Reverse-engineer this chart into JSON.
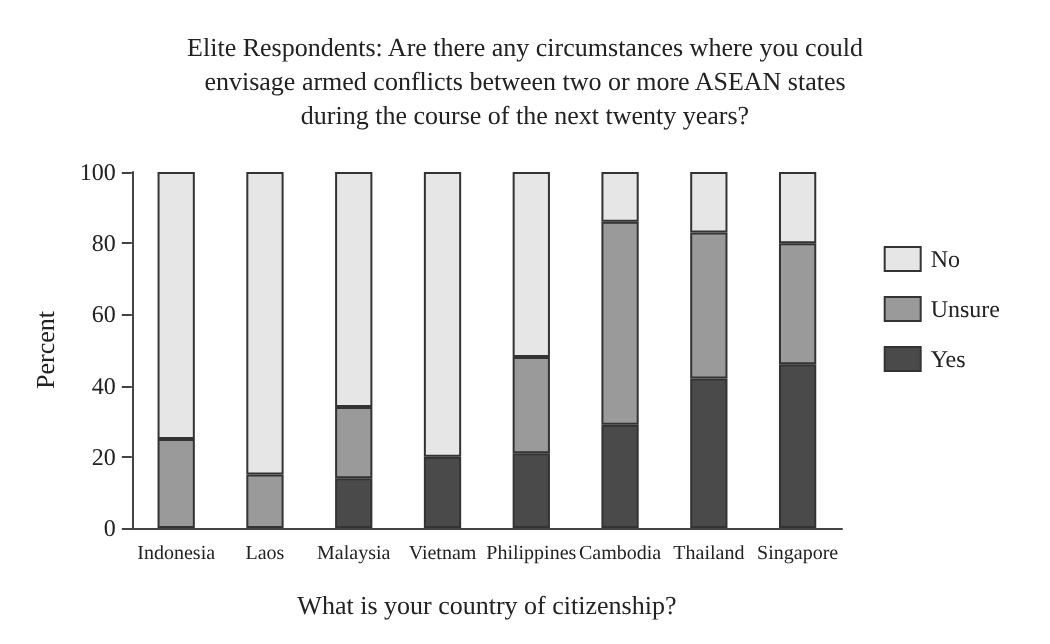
{
  "chart_data": {
    "type": "bar",
    "title": "Elite Respondents: Are there any circumstances where you could\nenvisage armed conflicts between two or more ASEAN states\nduring the course of the next twenty years?",
    "xlabel": "What is your country of citizenship?",
    "ylabel": "Percent",
    "categories": [
      "Indonesia",
      "Laos",
      "Malaysia",
      "Vietnam",
      "Philippines",
      "Cambodia",
      "Thailand",
      "Singapore"
    ],
    "stacked": true,
    "series": [
      {
        "name": "Yes",
        "color": "#4a4a4a",
        "values": [
          0,
          0,
          14,
          20,
          21,
          29,
          42,
          46
        ]
      },
      {
        "name": "Unsure",
        "color": "#9a9a9a",
        "values": [
          25,
          15,
          20,
          0,
          27,
          57,
          41,
          34
        ]
      },
      {
        "name": "No",
        "color": "#e6e6e6",
        "values": [
          75,
          85,
          66,
          80,
          52,
          14,
          17,
          20
        ]
      }
    ],
    "ylim": [
      0,
      100
    ],
    "yticks": [
      0,
      20,
      40,
      60,
      80,
      100
    ],
    "grid": false,
    "legend": "right"
  }
}
